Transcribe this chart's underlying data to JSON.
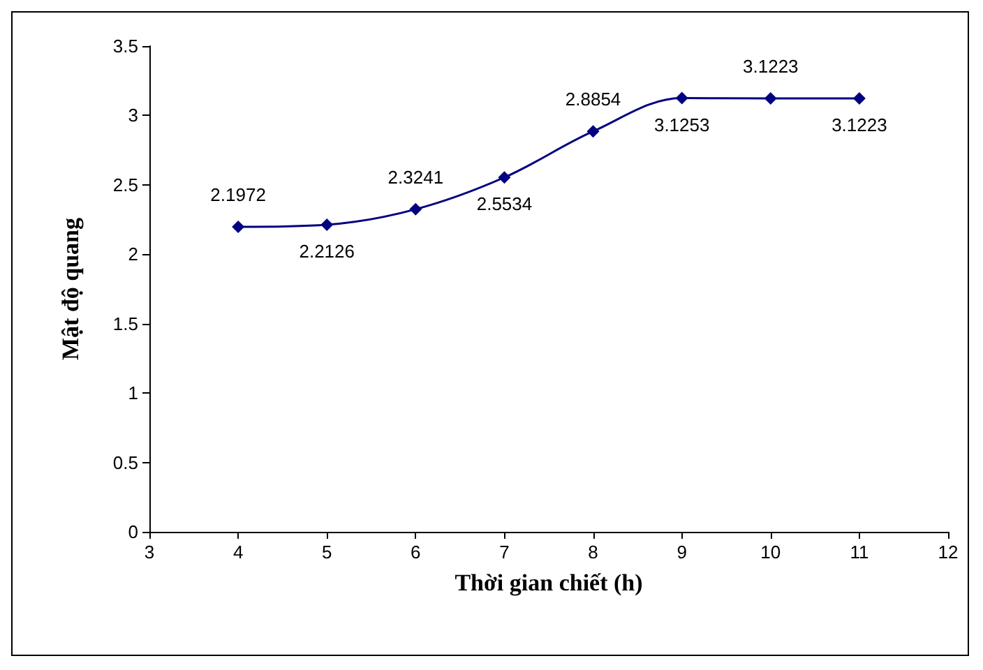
{
  "chart_data": {
    "type": "line",
    "xlabel": "Thời gian chiết (h)",
    "ylabel": "Mật độ quang",
    "x": [
      4,
      5,
      6,
      7,
      8,
      9,
      10,
      11
    ],
    "series": [
      {
        "color": "#000080",
        "values": [
          2.1972,
          2.2126,
          2.3241,
          2.5534,
          2.8854,
          3.1253,
          3.1223,
          3.1223
        ]
      }
    ],
    "xlim": [
      3,
      12
    ],
    "xticks": [
      3,
      4,
      5,
      6,
      7,
      8,
      9,
      10,
      11,
      12
    ],
    "ylim": [
      0,
      3.5
    ],
    "yticks": [
      0,
      0.5,
      1,
      1.5,
      2,
      2.5,
      3,
      3.5
    ],
    "grid": false,
    "marker": "diamond",
    "line_style": "solid",
    "data_labels": true
  }
}
